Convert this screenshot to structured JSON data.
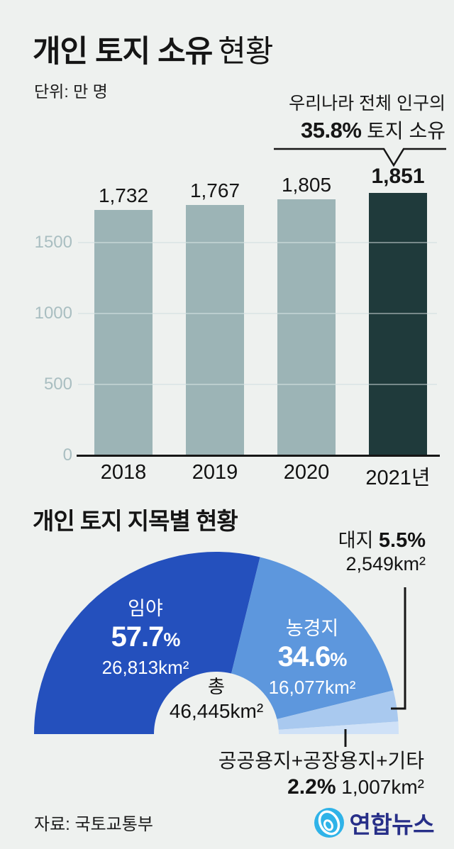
{
  "header": {
    "title_strong": "개인 토지 소유",
    "title_regular": "현황",
    "unit_label": "단위: 만 명",
    "annotation_line1": "우리나라 전체 인구의",
    "annotation_pct": "35.8%",
    "annotation_rest": " 토지 소유"
  },
  "chart_data": [
    {
      "type": "bar",
      "title": "개인 토지 소유 현황",
      "ylabel": "만 명",
      "categories": [
        "2018",
        "2019",
        "2020",
        "2021년"
      ],
      "values": [
        1732,
        1767,
        1805,
        1851
      ],
      "value_labels": [
        "1,732",
        "1,767",
        "1,805",
        "1,851"
      ],
      "yticks": [
        0,
        500,
        1000,
        1500
      ],
      "ylim": [
        0,
        1900
      ],
      "grid": true,
      "bar_color": "#9cb4b6",
      "highlight_color": "#1f3a3b",
      "highlight_index": 3,
      "annotation": "우리나라 전체 인구의 35.8% 토지 소유"
    },
    {
      "type": "pie",
      "shape": "half-donut",
      "title": "개인 토지 지목별 현황",
      "center": {
        "label": "총",
        "value": "46,445km²"
      },
      "slices": [
        {
          "label": "임야",
          "pct": 57.7,
          "pct_label": "57.7",
          "pct_sign": "%",
          "area": "26,813km²",
          "color": "#2450bd"
        },
        {
          "label": "농경지",
          "pct": 34.6,
          "pct_label": "34.6",
          "pct_sign": "%",
          "area": "16,077km²",
          "color": "#5d97dd"
        },
        {
          "label": "대지",
          "pct": 5.5,
          "pct_label": "5.5%",
          "area": "2,549km²",
          "color": "#a9c9ef"
        },
        {
          "label": "공공용지+공장용지+기타",
          "pct": 2.2,
          "pct_label": "2.2%",
          "area": "1,007km²",
          "color": "#cfe1f7"
        }
      ]
    }
  ],
  "section2": {
    "heading": "개인 토지 지목별 현황"
  },
  "footer": {
    "source": "자료: 국토교통부",
    "logo_text": "연합뉴스"
  }
}
